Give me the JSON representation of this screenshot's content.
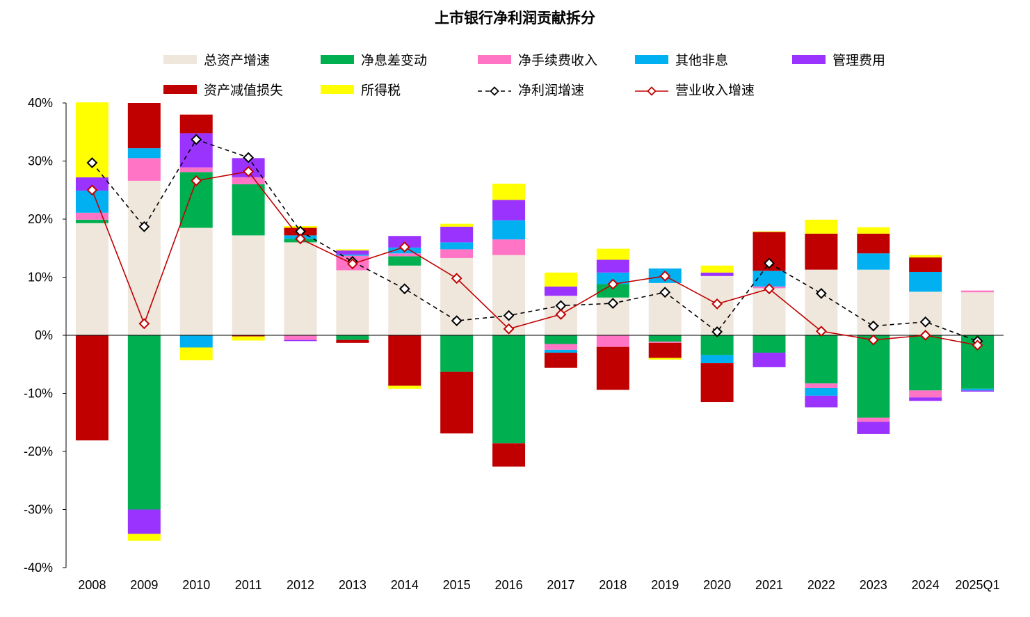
{
  "chart_data": {
    "type": "bar",
    "title": "上市银行净利润贡献拆分",
    "categories": [
      "2008",
      "2009",
      "2010",
      "2011",
      "2012",
      "2013",
      "2014",
      "2015",
      "2016",
      "2017",
      "2018",
      "2019",
      "2020",
      "2021",
      "2022",
      "2023",
      "2024",
      "2025Q1"
    ],
    "ylim": [
      -40,
      40
    ],
    "yticks": [
      "40%",
      "30%",
      "20%",
      "10%",
      "0%",
      "-10%",
      "-20%",
      "-30%",
      "-40%"
    ],
    "series": [
      {
        "name": "总资产增速",
        "kind": "bar",
        "color": "#EFE6DC",
        "values": [
          19.3,
          26.6,
          18.5,
          17.2,
          16.0,
          11.2,
          12.0,
          13.3,
          13.8,
          6.8,
          6.5,
          9.0,
          10.2,
          8.1,
          11.3,
          11.3,
          7.5,
          7.4
        ]
      },
      {
        "name": "净息差变动",
        "kind": "bar",
        "color": "#00B050",
        "values": [
          0.6,
          -30.0,
          9.6,
          8.8,
          0.6,
          -0.8,
          1.6,
          -6.3,
          -18.6,
          -1.5,
          2.3,
          -1.1,
          -3.4,
          -3.0,
          -8.3,
          -14.2,
          -9.5,
          -9.2
        ]
      },
      {
        "name": "净手续费收入",
        "kind": "bar",
        "color": "#FF74C5",
        "values": [
          1.2,
          3.9,
          0.8,
          1.2,
          -0.8,
          2.5,
          0.5,
          1.5,
          2.7,
          -1.0,
          -2.0,
          -0.2,
          0.0,
          0.3,
          -0.8,
          -0.7,
          -1.2,
          0.3
        ]
      },
      {
        "name": "其他非息",
        "kind": "bar",
        "color": "#00B0F0",
        "values": [
          3.8,
          1.7,
          -2.1,
          0.0,
          0.6,
          0.2,
          1.0,
          1.2,
          3.3,
          -0.5,
          2.0,
          2.5,
          -1.4,
          2.7,
          -1.3,
          2.8,
          3.4,
          -0.3
        ]
      },
      {
        "name": "管理费用",
        "kind": "bar",
        "color": "#9B33FF",
        "values": [
          2.3,
          -4.2,
          5.9,
          3.3,
          -0.2,
          0.7,
          2.0,
          2.7,
          3.5,
          1.6,
          2.2,
          0.0,
          0.6,
          -2.5,
          -2.0,
          -2.1,
          -0.6,
          -0.2
        ]
      },
      {
        "name": "资产减值损失",
        "kind": "bar",
        "color": "#C00000",
        "values": [
          -18.1,
          7.8,
          3.2,
          -0.2,
          1.3,
          -0.5,
          -8.7,
          -10.6,
          -4.0,
          -2.6,
          -7.4,
          -2.6,
          -6.7,
          6.7,
          6.2,
          3.4,
          2.5,
          0.0
        ]
      },
      {
        "name": "所得税",
        "kind": "bar",
        "color": "#FFFF00",
        "values": [
          12.9,
          -1.2,
          -2.2,
          -0.7,
          0.3,
          0.2,
          -0.5,
          0.5,
          2.8,
          2.4,
          1.9,
          -0.3,
          1.2,
          0.1,
          2.4,
          1.1,
          0.4,
          0.0
        ]
      },
      {
        "name": "净利润增速",
        "kind": "line",
        "color": "#000000",
        "dashed": true,
        "values": [
          29.7,
          18.7,
          33.7,
          30.6,
          17.9,
          12.7,
          8.0,
          2.5,
          3.4,
          5.1,
          5.5,
          7.4,
          0.6,
          12.4,
          7.2,
          1.6,
          2.3,
          -1.0
        ]
      },
      {
        "name": "营业收入增速",
        "kind": "line",
        "color": "#C00000",
        "dashed": false,
        "values": [
          25.0,
          2.0,
          26.6,
          28.2,
          16.6,
          12.3,
          15.2,
          9.8,
          1.1,
          3.6,
          8.8,
          10.2,
          5.4,
          8.0,
          0.7,
          -0.8,
          0.0,
          -1.7
        ]
      }
    ]
  }
}
